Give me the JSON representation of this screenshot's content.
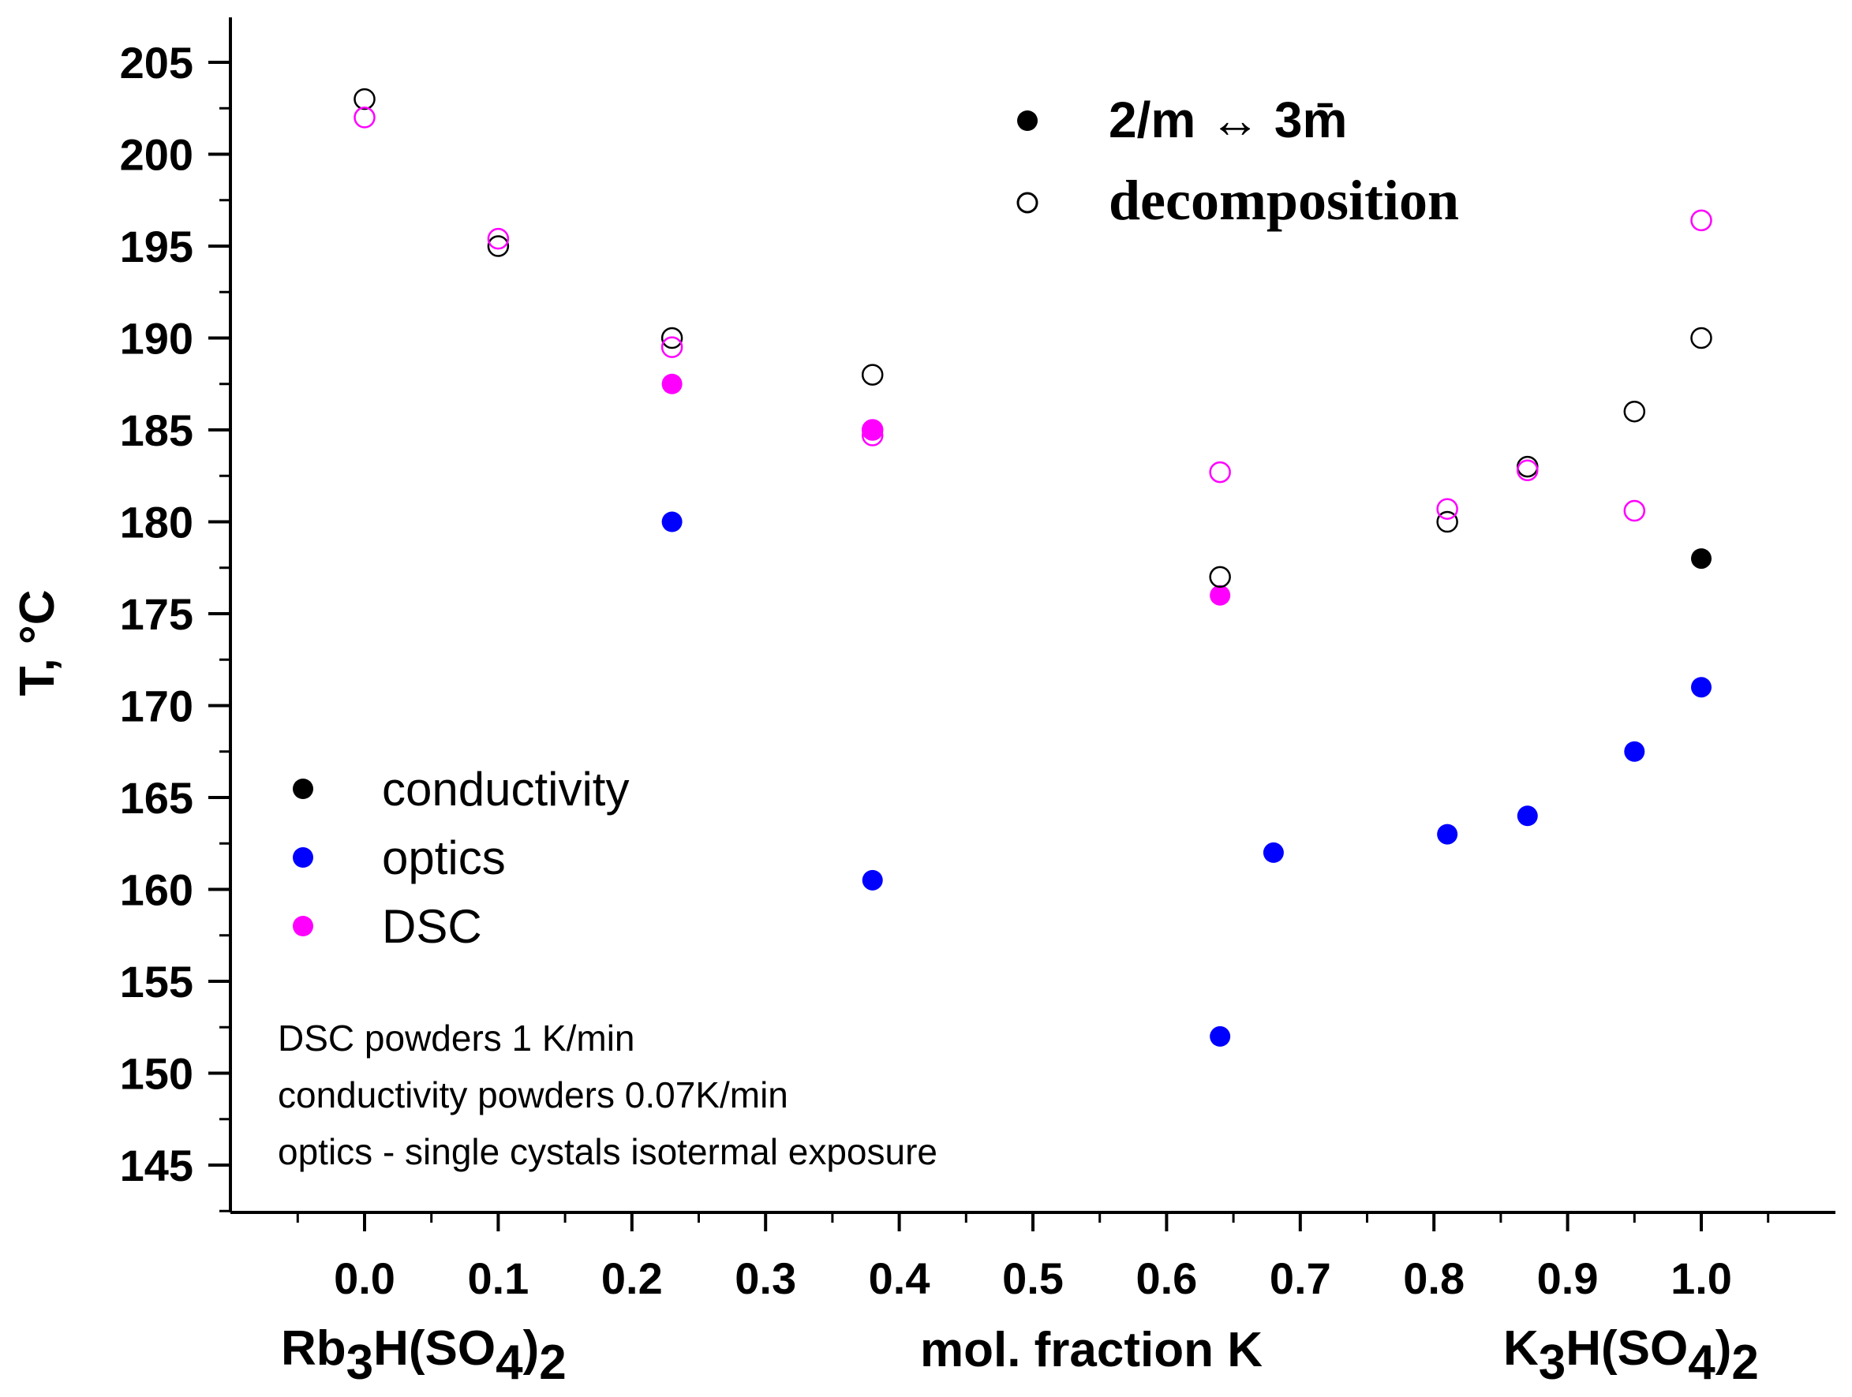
{
  "chart_data": {
    "type": "scatter",
    "title": "",
    "xlabel": "mol. fraction K",
    "ylabel": "T, °C",
    "xlim": [
      -0.1,
      1.1
    ],
    "ylim": [
      142,
      206
    ],
    "x_ticks": [
      0.0,
      0.1,
      0.2,
      0.3,
      0.4,
      0.5,
      0.6,
      0.7,
      0.8,
      0.9,
      1.0
    ],
    "x_tick_labels": [
      "0.0",
      "0.1",
      "0.2",
      "0.3",
      "0.4",
      "0.5",
      "0.6",
      "0.7",
      "0.8",
      "0.9",
      "1.0"
    ],
    "y_ticks": [
      145,
      150,
      155,
      160,
      165,
      170,
      175,
      180,
      185,
      190,
      195,
      200,
      205
    ],
    "y_tick_labels": [
      "145",
      "150",
      "155",
      "160",
      "165",
      "170",
      "175",
      "180",
      "185",
      "190",
      "195",
      "200",
      "205"
    ],
    "x_end_labels": {
      "left": {
        "main": "Rb",
        "sub1": "3",
        "mid": "H(SO",
        "sub2": "4",
        "end": ")",
        "sub3": "2"
      },
      "right": {
        "main": "K",
        "sub1": "3",
        "mid": "H(SO",
        "sub2": "4",
        "end": ")",
        "sub3": "2"
      }
    },
    "series": [
      {
        "name": "conductivity",
        "method": "conductivity",
        "transition": "2/m ↔ 3m̄",
        "filled": true,
        "color": "#000000",
        "points": [
          [
            1.0,
            178.0
          ]
        ]
      },
      {
        "name": "optics",
        "method": "optics",
        "transition": "2/m ↔ 3m̄",
        "filled": true,
        "color": "#0000ff",
        "points": [
          [
            0.23,
            180.0
          ],
          [
            0.38,
            160.5
          ],
          [
            0.64,
            152.0
          ],
          [
            0.68,
            162.0
          ],
          [
            0.81,
            163.0
          ],
          [
            0.87,
            164.0
          ],
          [
            0.95,
            167.5
          ],
          [
            1.0,
            171.0
          ]
        ]
      },
      {
        "name": "DSC",
        "method": "DSC",
        "transition": "2/m ↔ 3m̄",
        "filled": true,
        "color": "#ff00ff",
        "points": [
          [
            0.23,
            187.5
          ],
          [
            0.38,
            185.0
          ],
          [
            0.64,
            176.0
          ]
        ]
      },
      {
        "name": "decomposition (conductivity)",
        "method": "conductivity",
        "transition": "decomposition",
        "filled": false,
        "color": "#000000",
        "points": [
          [
            0.0,
            203.0
          ],
          [
            0.1,
            195.0
          ],
          [
            0.23,
            190.0
          ],
          [
            0.38,
            188.0
          ],
          [
            0.64,
            177.0
          ],
          [
            0.81,
            180.0
          ],
          [
            0.87,
            183.0
          ],
          [
            0.95,
            186.0
          ],
          [
            1.0,
            190.0
          ]
        ]
      },
      {
        "name": "decomposition (DSC)",
        "method": "DSC",
        "transition": "decomposition",
        "filled": false,
        "color": "#ff00ff",
        "points": [
          [
            0.0,
            202.0
          ],
          [
            0.1,
            195.4
          ],
          [
            0.23,
            189.5
          ],
          [
            0.38,
            185.0
          ],
          [
            0.38,
            184.7
          ],
          [
            0.64,
            182.7
          ],
          [
            0.81,
            180.7
          ],
          [
            0.87,
            182.8
          ],
          [
            0.95,
            180.6
          ],
          [
            1.0,
            196.4
          ]
        ]
      }
    ],
    "legend_transition": {
      "filled_label": "2/m ↔ 3m̄",
      "open_label": "decomposition",
      "filled_color": "#000000",
      "open_color": "#000000"
    },
    "legend_method": [
      {
        "label": "conductivity",
        "color": "#000000"
      },
      {
        "label": "optics",
        "color": "#0000ff"
      },
      {
        "label": "DSC",
        "color": "#ff00ff"
      }
    ],
    "notes": [
      "DSC powders 1 K/min",
      "conductivity powders 0.07K/min",
      "optics - single cystals isotermal exposure"
    ]
  }
}
